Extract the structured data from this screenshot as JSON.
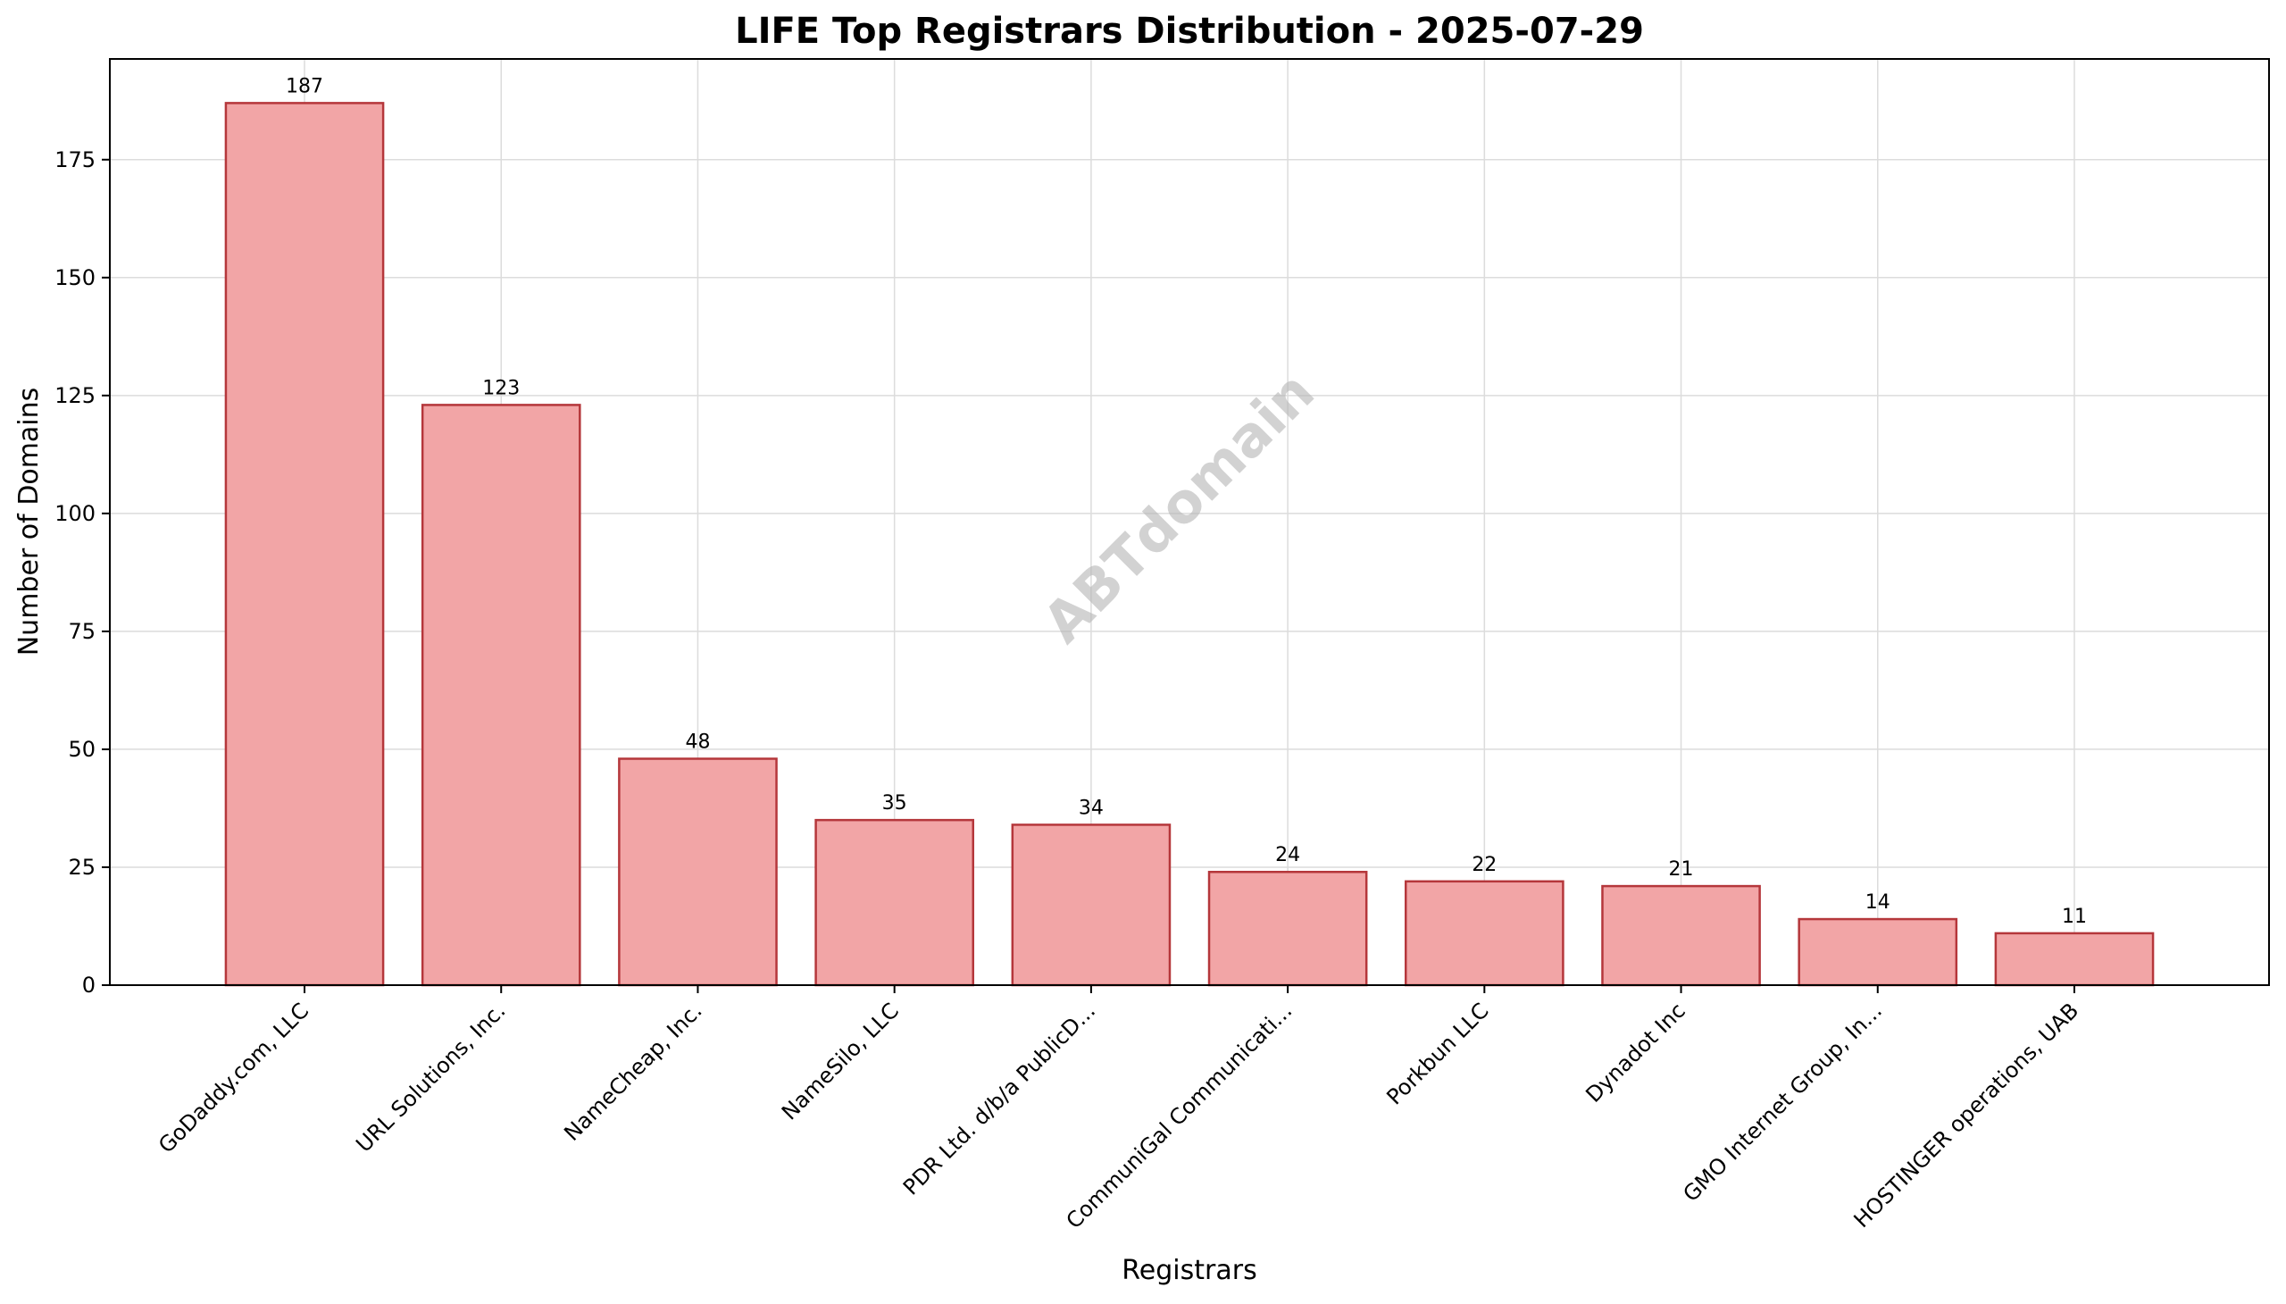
{
  "chart_data": {
    "type": "bar",
    "title": "LIFE Top Registrars Distribution - 2025-07-29",
    "xlabel": "Registrars",
    "ylabel": "Number of Domains",
    "categories": [
      "GoDaddy.com, LLC",
      "URL Solutions, Inc.",
      "NameCheap, Inc.",
      "NameSilo, LLC",
      "PDR Ltd. d/b/a PublicD...",
      "CommuniGal Communicati...",
      "Porkbun LLC",
      "Dynadot Inc",
      "GMO Internet Group, In...",
      "HOSTINGER operations, UAB"
    ],
    "values": [
      187,
      123,
      48,
      35,
      34,
      24,
      22,
      21,
      14,
      11
    ],
    "ylim": [
      0,
      196.35
    ],
    "yticks": [
      0,
      25,
      50,
      75,
      100,
      125,
      150,
      175
    ],
    "grid": true,
    "bar_fill": "#f2a5a6",
    "bar_edge": "#b5373b",
    "watermark": "ABTdomain"
  }
}
